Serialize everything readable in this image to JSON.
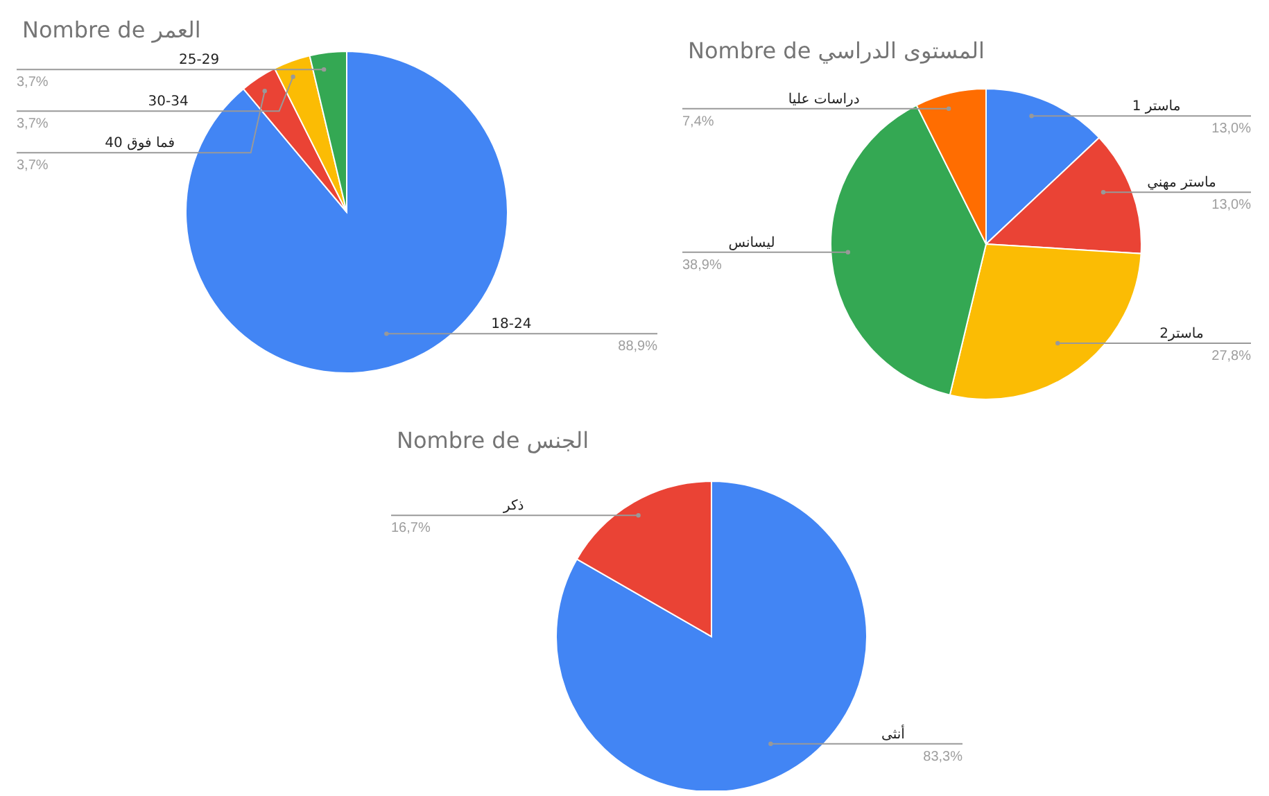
{
  "chart_data": [
    {
      "type": "pie",
      "title": "Nombre de العمر",
      "categories": [
        "18-24",
        "40 فما فوق",
        "30-34",
        "25-29"
      ],
      "values": [
        88.9,
        3.7,
        3.7,
        3.7
      ],
      "value_labels": [
        "88,9%",
        "3,7%",
        "3,7%",
        "3,7%"
      ],
      "colors": [
        "#4285f4",
        "#ea4335",
        "#fbbc04",
        "#34a853"
      ],
      "legend": false
    },
    {
      "type": "pie",
      "title": "Nombre de المستوى الدراسي",
      "categories": [
        "ماستر 1",
        "ماستر مهني",
        "ماستر2",
        "ليسانس",
        "دراسات عليا"
      ],
      "values": [
        13.0,
        13.0,
        27.8,
        38.9,
        7.4
      ],
      "value_labels": [
        "13,0%",
        "13,0%",
        "27,8%",
        "38,9%",
        "7,4%"
      ],
      "colors": [
        "#4285f4",
        "#ea4335",
        "#fbbc04",
        "#34a853",
        "#ff6d01"
      ],
      "legend": false
    },
    {
      "type": "pie",
      "title": "Nombre de الجنس",
      "categories": [
        "أنثى",
        "ذكر"
      ],
      "values": [
        83.3,
        16.7
      ],
      "value_labels": [
        "83,3%",
        "16,7%"
      ],
      "colors": [
        "#4285f4",
        "#ea4335"
      ],
      "legend": false
    }
  ]
}
